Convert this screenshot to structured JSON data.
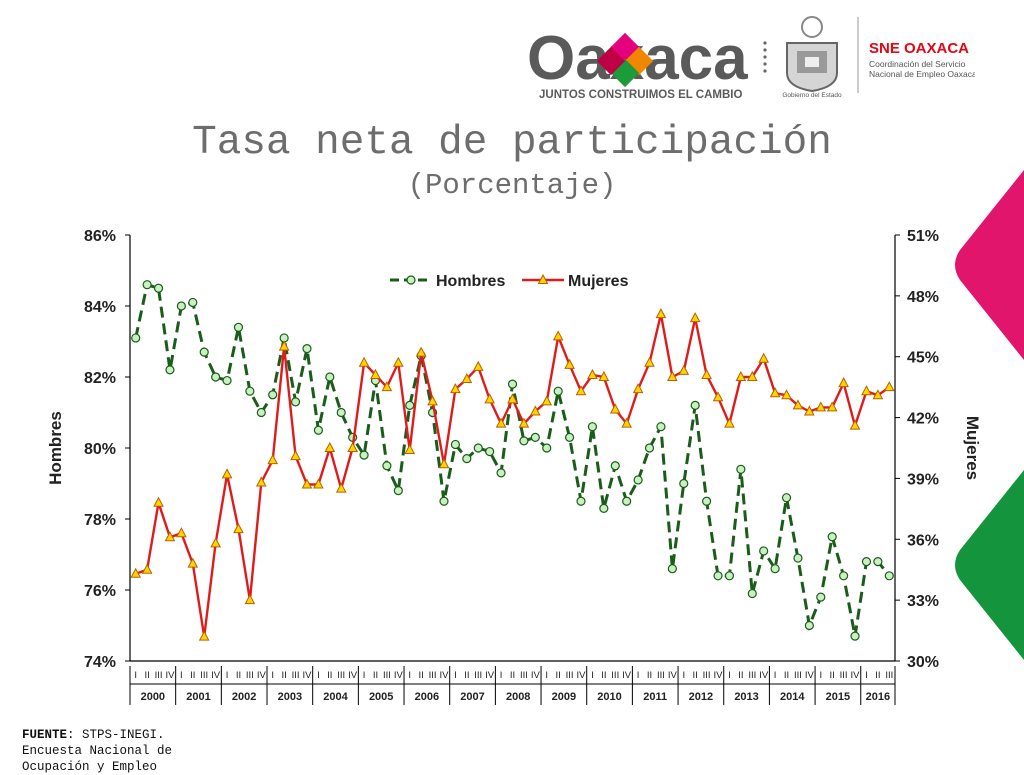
{
  "header": {
    "brand_logo_text": "Oaxaca",
    "brand_slogan": "JUNTOS CONSTRUIMOS EL CAMBIO",
    "gov_label": "Gobierno del Estado",
    "sne_title": "SNE OAXACA",
    "sne_line1": "Coordinación del Servicio",
    "sne_line2": "Nacional de Empleo Oaxaca"
  },
  "title": "Tasa neta de participación",
  "subtitle": "(Porcentaje)",
  "source": {
    "label": "FUENTE",
    "line1": ": STPS-INEGI.",
    "line2": "Encuesta Nacional de",
    "line3": "Ocupación y Empleo"
  },
  "colors": {
    "men": "#1a5c1a",
    "men_marker_fill": "#c8f0c0",
    "women": "#e01b1b",
    "women_marker_fill": "#ffd400"
  },
  "chart_data": {
    "type": "line",
    "legend_position": "top-center",
    "grid": false,
    "y_left": {
      "label": "Hombres",
      "range": [
        74,
        86
      ],
      "ticks": [
        "74%",
        "76%",
        "78%",
        "80%",
        "82%",
        "84%",
        "86%"
      ]
    },
    "y_right": {
      "label": "Mujeres",
      "range": [
        30,
        51
      ],
      "ticks": [
        "30%",
        "33%",
        "36%",
        "39%",
        "42%",
        "45%",
        "48%",
        "51%"
      ]
    },
    "quarters": [
      "I",
      "II",
      "III",
      "IV"
    ],
    "years": [
      "2000",
      "2001",
      "2002",
      "2003",
      "2004",
      "2005",
      "2006",
      "2007",
      "2008",
      "2009",
      "2010",
      "2011",
      "2012",
      "2013",
      "2014",
      "2015",
      "2016"
    ],
    "series": [
      {
        "name": "Hombres",
        "axis": "left",
        "style": "dashed-circle",
        "values": [
          83.1,
          84.6,
          84.5,
          82.2,
          84.0,
          84.1,
          82.7,
          82.0,
          81.9,
          83.4,
          81.6,
          81.0,
          81.5,
          83.1,
          81.3,
          82.8,
          80.5,
          82.0,
          81.0,
          80.3,
          79.8,
          81.9,
          79.5,
          78.8,
          81.2,
          82.6,
          81.0,
          78.5,
          80.1,
          79.7,
          80.0,
          79.9,
          79.3,
          81.8,
          80.2,
          80.3,
          80.0,
          81.6,
          80.3,
          78.5,
          80.6,
          78.3,
          79.5,
          78.5,
          79.1,
          80.0,
          80.6,
          76.6,
          79.0,
          81.2,
          78.5,
          76.4,
          76.4,
          79.4,
          75.9,
          77.1,
          76.6,
          78.6,
          76.9,
          75.0,
          75.8,
          77.5,
          76.4,
          74.7,
          76.8,
          76.8,
          76.4
        ]
      },
      {
        "name": "Mujeres",
        "axis": "right",
        "style": "solid-triangle",
        "values": [
          34.3,
          34.5,
          37.8,
          36.1,
          36.3,
          34.8,
          31.2,
          35.8,
          39.2,
          36.5,
          33.0,
          38.8,
          39.9,
          45.5,
          40.1,
          38.7,
          38.7,
          40.5,
          38.5,
          40.5,
          44.7,
          44.1,
          43.5,
          44.7,
          40.4,
          45.2,
          42.8,
          39.7,
          43.4,
          43.9,
          44.5,
          42.9,
          41.7,
          42.9,
          41.7,
          42.3,
          42.8,
          46.0,
          44.6,
          43.3,
          44.1,
          44.0,
          42.4,
          41.7,
          43.4,
          44.7,
          47.1,
          44.0,
          44.3,
          46.9,
          44.1,
          43.0,
          41.7,
          44.0,
          44.0,
          44.9,
          43.2,
          43.1,
          42.6,
          42.3,
          42.5,
          42.5,
          43.7,
          41.6,
          43.3,
          43.1,
          43.5
        ]
      }
    ]
  }
}
